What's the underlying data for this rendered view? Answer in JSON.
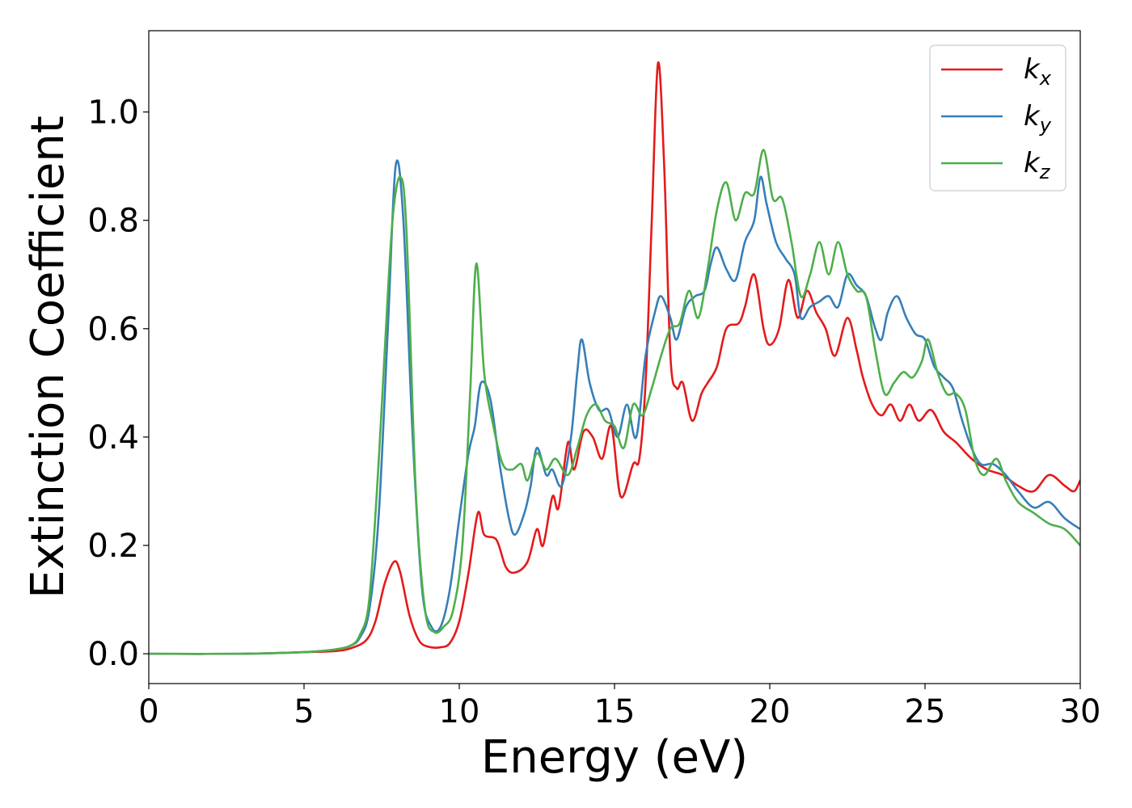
{
  "chart_data": {
    "type": "line",
    "title": "",
    "xlabel": "Energy (eV)",
    "ylabel": "Extinction Coefficient",
    "xlim": [
      0,
      30
    ],
    "ylim": [
      -0.055,
      1.15
    ],
    "xticks": [
      0,
      5,
      10,
      15,
      20,
      25,
      30
    ],
    "xtick_labels": [
      "0",
      "5",
      "10",
      "15",
      "20",
      "25",
      "30"
    ],
    "yticks": [
      0.0,
      0.2,
      0.4,
      0.6,
      0.8,
      1.0
    ],
    "ytick_labels": [
      "0.0",
      "0.2",
      "0.4",
      "0.6",
      "0.8",
      "1.0"
    ],
    "grid": false,
    "legend_position": "top-right",
    "series": [
      {
        "name": "k_x",
        "label_base": "k",
        "label_sub": "x",
        "color": "#e41a1c",
        "points": [
          [
            0,
            0
          ],
          [
            3,
            0
          ],
          [
            5,
            0.003
          ],
          [
            6,
            0.005
          ],
          [
            6.5,
            0.01
          ],
          [
            7,
            0.025
          ],
          [
            7.3,
            0.06
          ],
          [
            7.6,
            0.13
          ],
          [
            7.9,
            0.17
          ],
          [
            8.1,
            0.15
          ],
          [
            8.4,
            0.07
          ],
          [
            8.7,
            0.025
          ],
          [
            9,
            0.013
          ],
          [
            9.4,
            0.012
          ],
          [
            9.7,
            0.02
          ],
          [
            10,
            0.06
          ],
          [
            10.3,
            0.15
          ],
          [
            10.6,
            0.26
          ],
          [
            10.8,
            0.22
          ],
          [
            11.2,
            0.21
          ],
          [
            11.5,
            0.16
          ],
          [
            11.8,
            0.15
          ],
          [
            12.2,
            0.17
          ],
          [
            12.5,
            0.23
          ],
          [
            12.7,
            0.2
          ],
          [
            13,
            0.29
          ],
          [
            13.2,
            0.27
          ],
          [
            13.5,
            0.39
          ],
          [
            13.7,
            0.34
          ],
          [
            14,
            0.41
          ],
          [
            14.3,
            0.4
          ],
          [
            14.6,
            0.36
          ],
          [
            14.9,
            0.42
          ],
          [
            15.2,
            0.29
          ],
          [
            15.6,
            0.35
          ],
          [
            15.8,
            0.36
          ],
          [
            16,
            0.5
          ],
          [
            16.2,
            0.8
          ],
          [
            16.4,
            1.09
          ],
          [
            16.6,
            0.9
          ],
          [
            16.8,
            0.55
          ],
          [
            17,
            0.49
          ],
          [
            17.2,
            0.5
          ],
          [
            17.5,
            0.43
          ],
          [
            17.8,
            0.48
          ],
          [
            18,
            0.5
          ],
          [
            18.3,
            0.53
          ],
          [
            18.6,
            0.6
          ],
          [
            19,
            0.61
          ],
          [
            19.2,
            0.64
          ],
          [
            19.5,
            0.7
          ],
          [
            19.8,
            0.6
          ],
          [
            20,
            0.57
          ],
          [
            20.3,
            0.6
          ],
          [
            20.6,
            0.69
          ],
          [
            20.9,
            0.62
          ],
          [
            21.2,
            0.67
          ],
          [
            21.5,
            0.63
          ],
          [
            21.8,
            0.6
          ],
          [
            22.1,
            0.55
          ],
          [
            22.5,
            0.62
          ],
          [
            22.8,
            0.56
          ],
          [
            23,
            0.51
          ],
          [
            23.3,
            0.46
          ],
          [
            23.6,
            0.44
          ],
          [
            23.9,
            0.46
          ],
          [
            24.2,
            0.43
          ],
          [
            24.5,
            0.46
          ],
          [
            24.8,
            0.43
          ],
          [
            25.2,
            0.45
          ],
          [
            25.6,
            0.41
          ],
          [
            26,
            0.39
          ],
          [
            26.5,
            0.36
          ],
          [
            27,
            0.34
          ],
          [
            27.5,
            0.33
          ],
          [
            28,
            0.31
          ],
          [
            28.5,
            0.3
          ],
          [
            29,
            0.33
          ],
          [
            29.5,
            0.31
          ],
          [
            29.8,
            0.3
          ],
          [
            30,
            0.32
          ]
        ]
      },
      {
        "name": "k_y",
        "label_base": "k",
        "label_sub": "y",
        "color": "#377eb8",
        "points": [
          [
            0,
            0
          ],
          [
            3,
            0
          ],
          [
            5,
            0.003
          ],
          [
            6,
            0.008
          ],
          [
            6.5,
            0.015
          ],
          [
            6.8,
            0.03
          ],
          [
            7.1,
            0.08
          ],
          [
            7.4,
            0.25
          ],
          [
            7.7,
            0.6
          ],
          [
            7.95,
            0.9
          ],
          [
            8.2,
            0.8
          ],
          [
            8.5,
            0.4
          ],
          [
            8.8,
            0.12
          ],
          [
            9.1,
            0.05
          ],
          [
            9.4,
            0.05
          ],
          [
            9.7,
            0.12
          ],
          [
            10,
            0.25
          ],
          [
            10.3,
            0.37
          ],
          [
            10.5,
            0.42
          ],
          [
            10.7,
            0.5
          ],
          [
            11,
            0.47
          ],
          [
            11.3,
            0.35
          ],
          [
            11.6,
            0.25
          ],
          [
            11.8,
            0.22
          ],
          [
            12.1,
            0.26
          ],
          [
            12.3,
            0.31
          ],
          [
            12.5,
            0.38
          ],
          [
            12.8,
            0.33
          ],
          [
            13,
            0.34
          ],
          [
            13.3,
            0.31
          ],
          [
            13.6,
            0.4
          ],
          [
            13.8,
            0.52
          ],
          [
            13.95,
            0.58
          ],
          [
            14.2,
            0.5
          ],
          [
            14.5,
            0.45
          ],
          [
            14.8,
            0.45
          ],
          [
            15.1,
            0.4
          ],
          [
            15.4,
            0.46
          ],
          [
            15.7,
            0.4
          ],
          [
            16,
            0.55
          ],
          [
            16.3,
            0.63
          ],
          [
            16.5,
            0.66
          ],
          [
            16.8,
            0.62
          ],
          [
            17,
            0.58
          ],
          [
            17.3,
            0.64
          ],
          [
            17.6,
            0.66
          ],
          [
            17.9,
            0.67
          ],
          [
            18.1,
            0.72
          ],
          [
            18.3,
            0.75
          ],
          [
            18.6,
            0.71
          ],
          [
            18.9,
            0.69
          ],
          [
            19.2,
            0.76
          ],
          [
            19.5,
            0.8
          ],
          [
            19.7,
            0.88
          ],
          [
            19.9,
            0.83
          ],
          [
            20.2,
            0.76
          ],
          [
            20.5,
            0.73
          ],
          [
            20.8,
            0.7
          ],
          [
            21,
            0.62
          ],
          [
            21.3,
            0.64
          ],
          [
            21.6,
            0.65
          ],
          [
            21.9,
            0.66
          ],
          [
            22.2,
            0.64
          ],
          [
            22.5,
            0.7
          ],
          [
            22.8,
            0.68
          ],
          [
            23.1,
            0.66
          ],
          [
            23.4,
            0.6
          ],
          [
            23.6,
            0.58
          ],
          [
            23.8,
            0.63
          ],
          [
            24.1,
            0.66
          ],
          [
            24.4,
            0.62
          ],
          [
            24.7,
            0.59
          ],
          [
            25,
            0.58
          ],
          [
            25.3,
            0.53
          ],
          [
            25.6,
            0.51
          ],
          [
            25.9,
            0.49
          ],
          [
            26.2,
            0.43
          ],
          [
            26.5,
            0.38
          ],
          [
            26.8,
            0.35
          ],
          [
            27.2,
            0.35
          ],
          [
            27.6,
            0.33
          ],
          [
            28,
            0.3
          ],
          [
            28.5,
            0.27
          ],
          [
            29,
            0.28
          ],
          [
            29.5,
            0.25
          ],
          [
            30,
            0.23
          ]
        ]
      },
      {
        "name": "k_z",
        "label_base": "k",
        "label_sub": "z",
        "color": "#4daf4a",
        "points": [
          [
            0,
            0
          ],
          [
            3,
            0
          ],
          [
            5,
            0.003
          ],
          [
            6,
            0.008
          ],
          [
            6.5,
            0.015
          ],
          [
            6.8,
            0.035
          ],
          [
            7.1,
            0.1
          ],
          [
            7.4,
            0.35
          ],
          [
            7.6,
            0.56
          ],
          [
            7.85,
            0.8
          ],
          [
            8.1,
            0.88
          ],
          [
            8.3,
            0.78
          ],
          [
            8.6,
            0.3
          ],
          [
            8.9,
            0.08
          ],
          [
            9.2,
            0.04
          ],
          [
            9.5,
            0.05
          ],
          [
            9.8,
            0.08
          ],
          [
            10.1,
            0.2
          ],
          [
            10.35,
            0.48
          ],
          [
            10.55,
            0.72
          ],
          [
            10.8,
            0.52
          ],
          [
            11.1,
            0.42
          ],
          [
            11.4,
            0.35
          ],
          [
            11.7,
            0.34
          ],
          [
            12,
            0.35
          ],
          [
            12.2,
            0.32
          ],
          [
            12.5,
            0.37
          ],
          [
            12.8,
            0.34
          ],
          [
            13.1,
            0.36
          ],
          [
            13.5,
            0.33
          ],
          [
            13.8,
            0.38
          ],
          [
            14.1,
            0.44
          ],
          [
            14.4,
            0.46
          ],
          [
            14.7,
            0.43
          ],
          [
            15,
            0.42
          ],
          [
            15.3,
            0.38
          ],
          [
            15.6,
            0.46
          ],
          [
            15.9,
            0.44
          ],
          [
            16.2,
            0.49
          ],
          [
            16.5,
            0.55
          ],
          [
            16.8,
            0.6
          ],
          [
            17.1,
            0.61
          ],
          [
            17.4,
            0.67
          ],
          [
            17.7,
            0.62
          ],
          [
            18,
            0.71
          ],
          [
            18.3,
            0.82
          ],
          [
            18.6,
            0.87
          ],
          [
            18.9,
            0.8
          ],
          [
            19.2,
            0.85
          ],
          [
            19.5,
            0.85
          ],
          [
            19.8,
            0.93
          ],
          [
            20.1,
            0.84
          ],
          [
            20.4,
            0.84
          ],
          [
            20.7,
            0.76
          ],
          [
            21,
            0.66
          ],
          [
            21.3,
            0.7
          ],
          [
            21.6,
            0.76
          ],
          [
            21.9,
            0.7
          ],
          [
            22.2,
            0.76
          ],
          [
            22.5,
            0.7
          ],
          [
            22.8,
            0.67
          ],
          [
            23.1,
            0.66
          ],
          [
            23.4,
            0.56
          ],
          [
            23.7,
            0.48
          ],
          [
            24,
            0.5
          ],
          [
            24.3,
            0.52
          ],
          [
            24.6,
            0.51
          ],
          [
            24.9,
            0.54
          ],
          [
            25.1,
            0.58
          ],
          [
            25.4,
            0.52
          ],
          [
            25.7,
            0.48
          ],
          [
            26,
            0.48
          ],
          [
            26.3,
            0.45
          ],
          [
            26.6,
            0.36
          ],
          [
            26.9,
            0.33
          ],
          [
            27.3,
            0.36
          ],
          [
            27.6,
            0.32
          ],
          [
            28,
            0.28
          ],
          [
            28.5,
            0.26
          ],
          [
            29,
            0.24
          ],
          [
            29.5,
            0.23
          ],
          [
            30,
            0.2
          ]
        ]
      }
    ]
  }
}
